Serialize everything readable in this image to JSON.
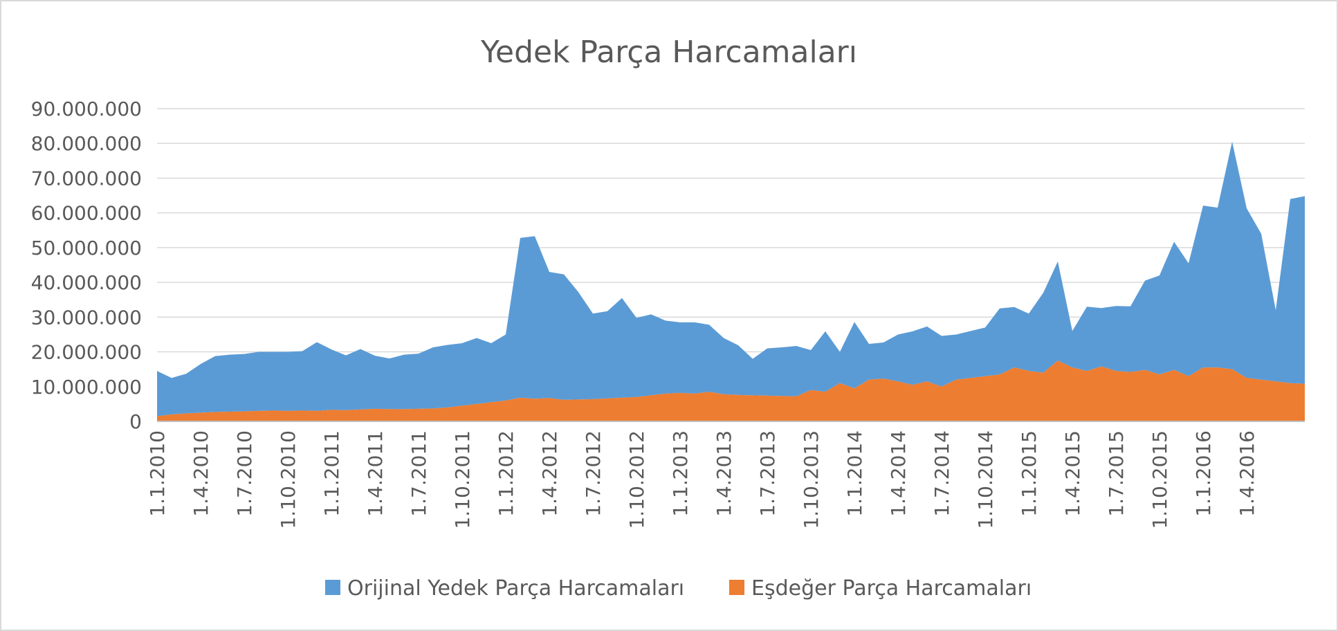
{
  "chart_data": {
    "type": "area",
    "stacked": true,
    "title": "Yedek Parça Harcamaları",
    "xlabel": "",
    "ylabel": "",
    "ylim": [
      0,
      90000000
    ],
    "yticks": [
      0,
      10000000,
      20000000,
      30000000,
      40000000,
      50000000,
      60000000,
      70000000,
      80000000,
      90000000
    ],
    "ytick_labels": [
      "0",
      "10.000.000",
      "20.000.000",
      "30.000.000",
      "40.000.000",
      "50.000.000",
      "60.000.000",
      "70.000.000",
      "80.000.000",
      "90.000.000"
    ],
    "grid": true,
    "legend_position": "bottom",
    "x_tick_labels": [
      "1.1.2010",
      "1.4.2010",
      "1.7.2010",
      "1.10.2010",
      "1.1.2011",
      "1.4.2011",
      "1.7.2011",
      "1.10.2011",
      "1.1.2012",
      "1.4.2012",
      "1.7.2012",
      "1.10.2012",
      "1.1.2013",
      "1.4.2013",
      "1.7.2013",
      "1.10.2013",
      "1.1.2014",
      "1.4.2014",
      "1.7.2014",
      "1.10.2014",
      "1.1.2015",
      "1.4.2015",
      "1.7.2015",
      "1.10.2015",
      "1.1.2016",
      "1.4.2016"
    ],
    "series": [
      {
        "name": "Eşdeğer Parça Harcamaları",
        "color": "#ed7d31",
        "values": [
          1500000,
          2000000,
          2300000,
          2500000,
          2700000,
          2800000,
          2900000,
          3000000,
          3100000,
          3000000,
          3100000,
          3000000,
          3300000,
          3200000,
          3400000,
          3600000,
          3500000,
          3500000,
          3600000,
          3700000,
          4000000,
          4500000,
          5000000,
          5500000,
          6000000,
          6800000,
          6500000,
          6700000,
          6200000,
          6300000,
          6400000,
          6600000,
          6800000,
          7000000,
          7500000,
          8000000,
          8200000,
          8000000,
          8500000,
          7800000,
          7600000,
          7500000,
          7400000,
          7300000,
          7200000,
          9000000,
          8500000,
          11000000,
          9500000,
          12000000,
          12300000,
          11500000,
          10500000,
          11500000,
          10000000,
          12000000,
          12500000,
          13000000,
          13500000,
          15500000,
          14500000,
          14000000,
          17500000,
          15500000,
          14500000,
          15800000,
          14500000,
          14200000,
          14800000,
          13500000,
          14800000,
          13000000,
          15500000,
          15500000,
          15000000,
          12500000,
          12000000,
          11500000,
          11000000,
          10800000
        ]
      },
      {
        "name": "Orijinal Yedek Parça Harcamaları",
        "color": "#5b9bd5",
        "values": [
          13000000,
          10500000,
          11400000,
          14000000,
          16100000,
          16400000,
          16500000,
          17000000,
          16900000,
          17000000,
          17100000,
          19800000,
          17400000,
          15800000,
          17400000,
          15300000,
          14600000,
          15700000,
          15900000,
          17600000,
          18000000,
          18000000,
          19000000,
          17000000,
          19000000,
          46000000,
          46800000,
          36300000,
          36100000,
          30900000,
          24600000,
          25100000,
          28700000,
          22800000,
          23300000,
          21000000,
          20300000,
          20500000,
          19300000,
          16200000,
          14300000,
          10500000,
          13600000,
          14000000,
          14500000,
          11500000,
          17400000,
          9000000,
          19100000,
          10300000,
          10400000,
          13500000,
          15400000,
          15800000,
          14600000,
          13000000,
          13500000,
          14000000,
          19000000,
          17400000,
          16500000,
          23000000,
          28500000,
          10500000,
          18500000,
          16800000,
          18700000,
          18900000,
          25700000,
          28500000,
          36900000,
          32500000,
          46600000,
          46000000,
          65500000,
          48800000,
          42000000,
          20500000,
          53000000,
          54000000
        ]
      }
    ]
  }
}
